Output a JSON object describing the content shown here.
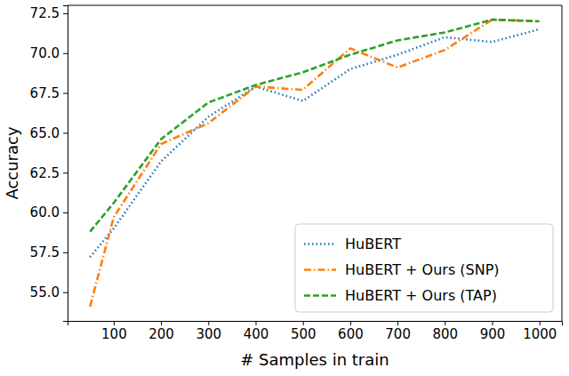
{
  "chart_data": {
    "type": "line",
    "x_label": "# Samples in train",
    "y_label": "Accuracy",
    "x": [
      50,
      100,
      200,
      300,
      400,
      500,
      600,
      700,
      800,
      900,
      1000
    ],
    "series": [
      {
        "name": "HuBERT",
        "color": "#1f77b4",
        "line_style": "dotted",
        "values": [
          57.2,
          59.0,
          63.2,
          66.0,
          67.9,
          67.0,
          69.0,
          69.9,
          71.0,
          70.7,
          71.5
        ]
      },
      {
        "name": "HuBERT + Ours (SNP)",
        "color": "#ff7f0e",
        "line_style": "dashdot",
        "values": [
          54.1,
          59.7,
          64.3,
          65.6,
          67.9,
          67.7,
          70.3,
          69.1,
          70.2,
          72.1,
          72.0
        ]
      },
      {
        "name": "HuBERT + Ours (TAP)",
        "color": "#2ca02c",
        "line_style": "dashed",
        "values": [
          58.8,
          60.6,
          64.6,
          66.9,
          68.0,
          68.8,
          69.9,
          70.8,
          71.3,
          72.1,
          72.0
        ]
      }
    ],
    "xlim": [
      2.5,
      1047.5
    ],
    "xticks": [
      100,
      200,
      300,
      400,
      500,
      600,
      700,
      800,
      900,
      1000
    ],
    "ylim": [
      53.2,
      73.0
    ],
    "yticks": [
      {
        "value": 55,
        "label": "55.0"
      },
      57.5,
      {
        "value": 60,
        "label": "60.0"
      },
      62.5,
      {
        "value": 65,
        "label": "65.0"
      },
      67.5,
      {
        "value": 70,
        "label": "70.0"
      },
      72.5
    ],
    "legend": "lower right",
    "grid": false
  }
}
